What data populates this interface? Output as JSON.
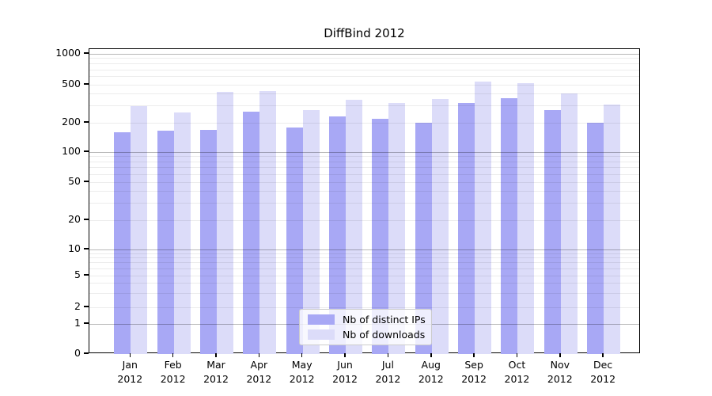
{
  "chart_data": {
    "type": "bar",
    "title": "DiffBind 2012",
    "categories": [
      "Jan 2012",
      "Feb 2012",
      "Mar 2012",
      "Apr 2012",
      "May 2012",
      "Jun 2012",
      "Jul 2012",
      "Aug 2012",
      "Sep 2012",
      "Oct 2012",
      "Nov 2012",
      "Dec 2012"
    ],
    "series": [
      {
        "name": "Nb of distinct IPs",
        "color": "#a8a8f5",
        "values": [
          160,
          165,
          170,
          260,
          180,
          235,
          220,
          200,
          320,
          360,
          270,
          200
        ]
      },
      {
        "name": "Nb of downloads",
        "color": "#dcdcf9",
        "values": [
          300,
          255,
          420,
          430,
          270,
          350,
          325,
          355,
          535,
          515,
          405,
          310
        ]
      }
    ],
    "y_ticks": [
      0,
      1,
      2,
      5,
      10,
      20,
      50,
      100,
      200,
      500,
      1000
    ],
    "y_scale": "symlog",
    "ylim": [
      0,
      1000
    ],
    "xlabel": "",
    "ylabel": "",
    "grid": "on",
    "legend_position": "lower center"
  },
  "colors": {
    "major_grid": "#b5b5b5",
    "minor_grid": "#e9e9e9",
    "axis": "#000000",
    "background": "#ffffff"
  }
}
